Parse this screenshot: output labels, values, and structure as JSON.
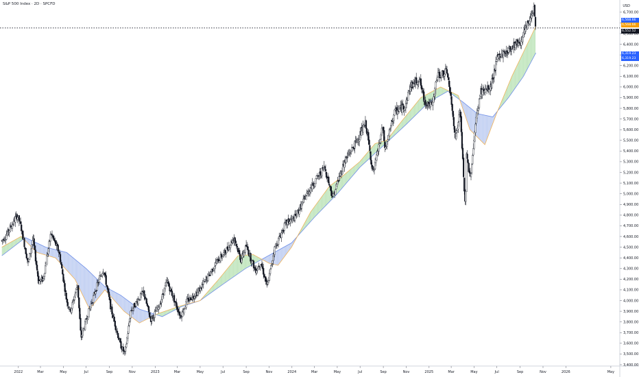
{
  "header": {
    "title": "S&P 500 Index · 2D · SPCFD",
    "currency": "USD"
  },
  "price_labels": [
    {
      "text": "6,568.66",
      "color": "#2962ff",
      "value": 6568.66
    },
    {
      "text": "6,568.66",
      "color": "#f59e0b",
      "value": 6568.66
    },
    {
      "text": "6,552.52",
      "color": "#131722",
      "value": 6552.52
    },
    {
      "text": "6,319.23",
      "color": "#2962ff",
      "value": 6319.23
    },
    {
      "text": "6,319.23",
      "color": "#2962ff",
      "value": 6319.23
    }
  ],
  "colors": {
    "up": "#131722",
    "down": "#131722",
    "fast_ma": "#f0b35a",
    "slow_ma": "#6f8fe8",
    "fill_bull": "#b7e1b3",
    "fill_bear": "#b8c8f0",
    "last_line": "#131722"
  },
  "chart_data": {
    "type": "candlestick",
    "title": "S&P 500 Index · 2D · SPCFD",
    "ylabel": "USD",
    "ylim": [
      3400,
      6750
    ],
    "y_ticks": [
      3400,
      3500,
      3600,
      3700,
      3800,
      3900,
      4000,
      4100,
      4200,
      4300,
      4400,
      4500,
      4600,
      4700,
      4800,
      4900,
      5000,
      5100,
      5200,
      5300,
      5400,
      5500,
      5600,
      5700,
      5800,
      5900,
      6000,
      6100,
      6200,
      6300,
      6400,
      6500,
      6600,
      6700
    ],
    "x_labels": [
      "2022",
      "Mar",
      "May",
      "Jul",
      "Sep",
      "Nov",
      "2023",
      "Mar",
      "May",
      "Jul",
      "Sep",
      "Nov",
      "2024",
      "Mar",
      "May",
      "Jul",
      "Sep",
      "Nov",
      "2025",
      "Mar",
      "May",
      "Jul",
      "Sep",
      "Nov",
      "2026",
      "May"
    ],
    "last_price": 6552.52,
    "price_path": [
      [
        "2021-11-18",
        4560
      ],
      [
        "2021-12-03",
        4630
      ],
      [
        "2021-12-29",
        4800
      ],
      [
        "2022-01-08",
        4690
      ],
      [
        "2022-01-27",
        4350
      ],
      [
        "2022-02-09",
        4580
      ],
      [
        "2022-02-24",
        4180
      ],
      [
        "2022-03-08",
        4200
      ],
      [
        "2022-03-29",
        4630
      ],
      [
        "2022-04-20",
        4450
      ],
      [
        "2022-05-10",
        4000
      ],
      [
        "2022-05-20",
        3900
      ],
      [
        "2022-06-08",
        4150
      ],
      [
        "2022-06-17",
        3650
      ],
      [
        "2022-07-08",
        3900
      ],
      [
        "2022-07-29",
        4130
      ],
      [
        "2022-08-16",
        4300
      ],
      [
        "2022-09-06",
        3910
      ],
      [
        "2022-09-30",
        3590
      ],
      [
        "2022-10-12",
        3500
      ],
      [
        "2022-10-28",
        3900
      ],
      [
        "2022-11-15",
        4000
      ],
      [
        "2022-12-01",
        4080
      ],
      [
        "2022-12-20",
        3820
      ],
      [
        "2023-01-10",
        3930
      ],
      [
        "2023-02-02",
        4180
      ],
      [
        "2023-03-10",
        3850
      ],
      [
        "2023-03-28",
        4000
      ],
      [
        "2023-04-25",
        4080
      ],
      [
        "2023-05-18",
        4200
      ],
      [
        "2023-06-12",
        4350
      ],
      [
        "2023-07-06",
        4450
      ],
      [
        "2023-07-31",
        4590
      ],
      [
        "2023-08-18",
        4380
      ],
      [
        "2023-09-01",
        4510
      ],
      [
        "2023-09-26",
        4280
      ],
      [
        "2023-10-10",
        4360
      ],
      [
        "2023-10-27",
        4130
      ],
      [
        "2023-11-15",
        4480
      ],
      [
        "2023-12-15",
        4720
      ],
      [
        "2024-01-10",
        4780
      ],
      [
        "2024-02-15",
        5030
      ],
      [
        "2024-03-28",
        5250
      ],
      [
        "2024-04-19",
        4970
      ],
      [
        "2024-05-20",
        5300
      ],
      [
        "2024-06-20",
        5480
      ],
      [
        "2024-07-16",
        5660
      ],
      [
        "2024-08-05",
        5180
      ],
      [
        "2024-08-30",
        5620
      ],
      [
        "2024-09-06",
        5410
      ],
      [
        "2024-09-30",
        5760
      ],
      [
        "2024-10-30",
        5830
      ],
      [
        "2024-11-11",
        6000
      ],
      [
        "2024-12-06",
        6080
      ],
      [
        "2024-12-19",
        5870
      ],
      [
        "2025-01-10",
        5820
      ],
      [
        "2025-01-23",
        6110
      ],
      [
        "2025-02-19",
        6140
      ],
      [
        "2025-03-13",
        5520
      ],
      [
        "2025-03-25",
        5780
      ],
      [
        "2025-04-08",
        4830
      ],
      [
        "2025-04-11",
        5360
      ],
      [
        "2025-04-21",
        5150
      ],
      [
        "2025-05-05",
        5650
      ],
      [
        "2025-05-19",
        5960
      ],
      [
        "2025-06-13",
        5980
      ],
      [
        "2025-07-03",
        6280
      ],
      [
        "2025-07-31",
        6340
      ],
      [
        "2025-08-20",
        6410
      ],
      [
        "2025-09-02",
        6420
      ],
      [
        "2025-09-25",
        6620
      ],
      [
        "2025-10-08",
        6750
      ],
      [
        "2025-10-13",
        6552.52
      ]
    ],
    "series": [
      {
        "name": "fast_ma",
        "path": [
          [
            "2021-11-18",
            4500
          ],
          [
            "2022-01-08",
            4600
          ],
          [
            "2022-02-20",
            4450
          ],
          [
            "2022-04-10",
            4400
          ],
          [
            "2022-06-01",
            4200
          ],
          [
            "2022-07-10",
            3920
          ],
          [
            "2022-08-20",
            4100
          ],
          [
            "2022-10-10",
            3900
          ],
          [
            "2022-11-20",
            3790
          ],
          [
            "2023-01-10",
            3880
          ],
          [
            "2023-03-10",
            3950
          ],
          [
            "2023-05-01",
            4000
          ],
          [
            "2023-06-20",
            4200
          ],
          [
            "2023-08-10",
            4420
          ],
          [
            "2023-09-20",
            4430
          ],
          [
            "2023-11-01",
            4350
          ],
          [
            "2023-11-25",
            4330
          ],
          [
            "2023-12-31",
            4500
          ],
          [
            "2024-02-20",
            4830
          ],
          [
            "2024-04-10",
            5070
          ],
          [
            "2024-05-10",
            5150
          ],
          [
            "2024-06-30",
            5300
          ],
          [
            "2024-08-10",
            5470
          ],
          [
            "2024-09-10",
            5500
          ],
          [
            "2024-10-20",
            5680
          ],
          [
            "2024-12-10",
            5900
          ],
          [
            "2025-02-01",
            6000
          ],
          [
            "2025-03-20",
            5920
          ],
          [
            "2025-04-20",
            5600
          ],
          [
            "2025-05-30",
            5460
          ],
          [
            "2025-06-30",
            5750
          ],
          [
            "2025-08-10",
            6100
          ],
          [
            "2025-09-20",
            6400
          ],
          [
            "2025-10-13",
            6568.66
          ]
        ]
      },
      {
        "name": "slow_ma",
        "path": [
          [
            "2021-11-18",
            4420
          ],
          [
            "2022-01-20",
            4590
          ],
          [
            "2022-03-15",
            4500
          ],
          [
            "2022-05-10",
            4450
          ],
          [
            "2022-07-01",
            4300
          ],
          [
            "2022-08-20",
            4130
          ],
          [
            "2022-10-01",
            4050
          ],
          [
            "2022-11-20",
            3920
          ],
          [
            "2023-01-20",
            3850
          ],
          [
            "2023-03-10",
            3940
          ],
          [
            "2023-05-01",
            4000
          ],
          [
            "2023-06-30",
            4150
          ],
          [
            "2023-08-30",
            4300
          ],
          [
            "2023-10-30",
            4420
          ],
          [
            "2023-12-31",
            4540
          ],
          [
            "2024-03-01",
            4780
          ],
          [
            "2024-05-01",
            5000
          ],
          [
            "2024-07-01",
            5250
          ],
          [
            "2024-09-01",
            5450
          ],
          [
            "2024-11-01",
            5650
          ],
          [
            "2025-01-01",
            5860
          ],
          [
            "2025-02-20",
            5960
          ],
          [
            "2025-04-01",
            5860
          ],
          [
            "2025-05-10",
            5750
          ],
          [
            "2025-06-20",
            5720
          ],
          [
            "2025-08-01",
            5900
          ],
          [
            "2025-09-10",
            6100
          ],
          [
            "2025-10-13",
            6319.23
          ]
        ]
      }
    ]
  }
}
